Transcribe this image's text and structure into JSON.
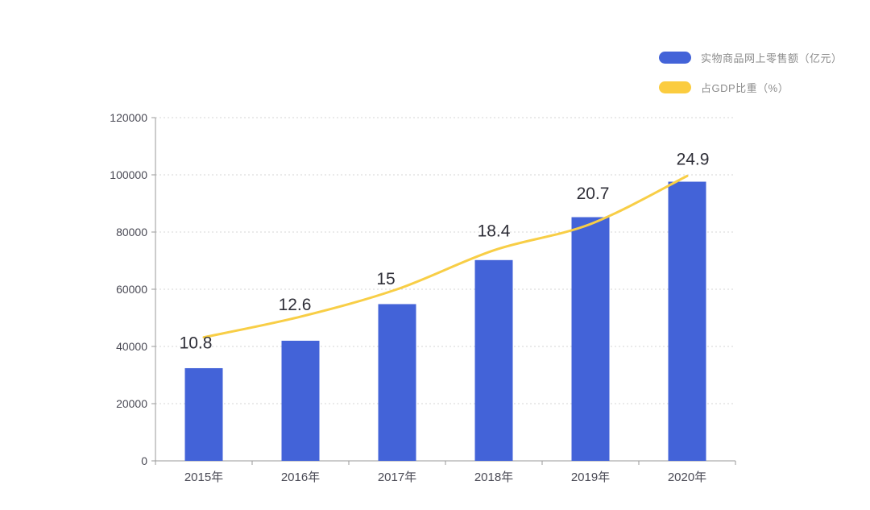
{
  "page": {
    "background": "#ffffff",
    "description": "Combo bar-line chart of China online retail sales of physical goods and its share of GDP, 2015-2020"
  },
  "legend": {
    "position": "top-right",
    "items": [
      {
        "label": "实物商品网上零售额（亿元）",
        "color": "#4363d8",
        "shape": "rounded-pill"
      },
      {
        "label": "占GDP比重（%）",
        "color": "#fbcc3f",
        "shape": "rounded-pill"
      }
    ]
  },
  "chart_data": {
    "type": "bar",
    "subtype": "bar+line combo",
    "categories": [
      "2015年",
      "2016年",
      "2017年",
      "2018年",
      "2019年",
      "2020年"
    ],
    "series": [
      {
        "name": "实物商品网上零售额（亿元）",
        "type": "bar",
        "color": "#4363d8",
        "axis": "left",
        "values": [
          32400,
          42000,
          54800,
          70200,
          85200,
          97600
        ],
        "value_labels_shown": false
      },
      {
        "name": "占GDP比重（%）",
        "type": "line",
        "color": "#fbcc3f",
        "axis": "right-hidden",
        "smooth": true,
        "values": [
          10.8,
          12.6,
          15,
          18.4,
          20.7,
          24.9
        ],
        "value_labels_shown": true,
        "value_labels": [
          "10.8",
          "12.6",
          "15",
          "18.4",
          "20.7",
          "24.9"
        ]
      }
    ],
    "left_axis": {
      "min": 0,
      "max": 120000,
      "tick_step": 20000,
      "tick_labels": [
        "0",
        "20000",
        "40000",
        "60000",
        "80000",
        "100000",
        "120000"
      ]
    },
    "right_axis": {
      "min": 0,
      "max": 30,
      "visible": false
    },
    "grid": "horizontal dotted gridlines",
    "legend_position": "top-right",
    "title": "",
    "xlabel": "",
    "ylabel": ""
  },
  "colors": {
    "bar": "#4363d8",
    "line": "#f8ce46",
    "axis_line": "#999999",
    "gridline": "#d4d4d4",
    "axis_text": "#4a4a55",
    "data_label_text": "#2f2f38",
    "legend_text": "#8c8c8c",
    "background": "#ffffff"
  }
}
